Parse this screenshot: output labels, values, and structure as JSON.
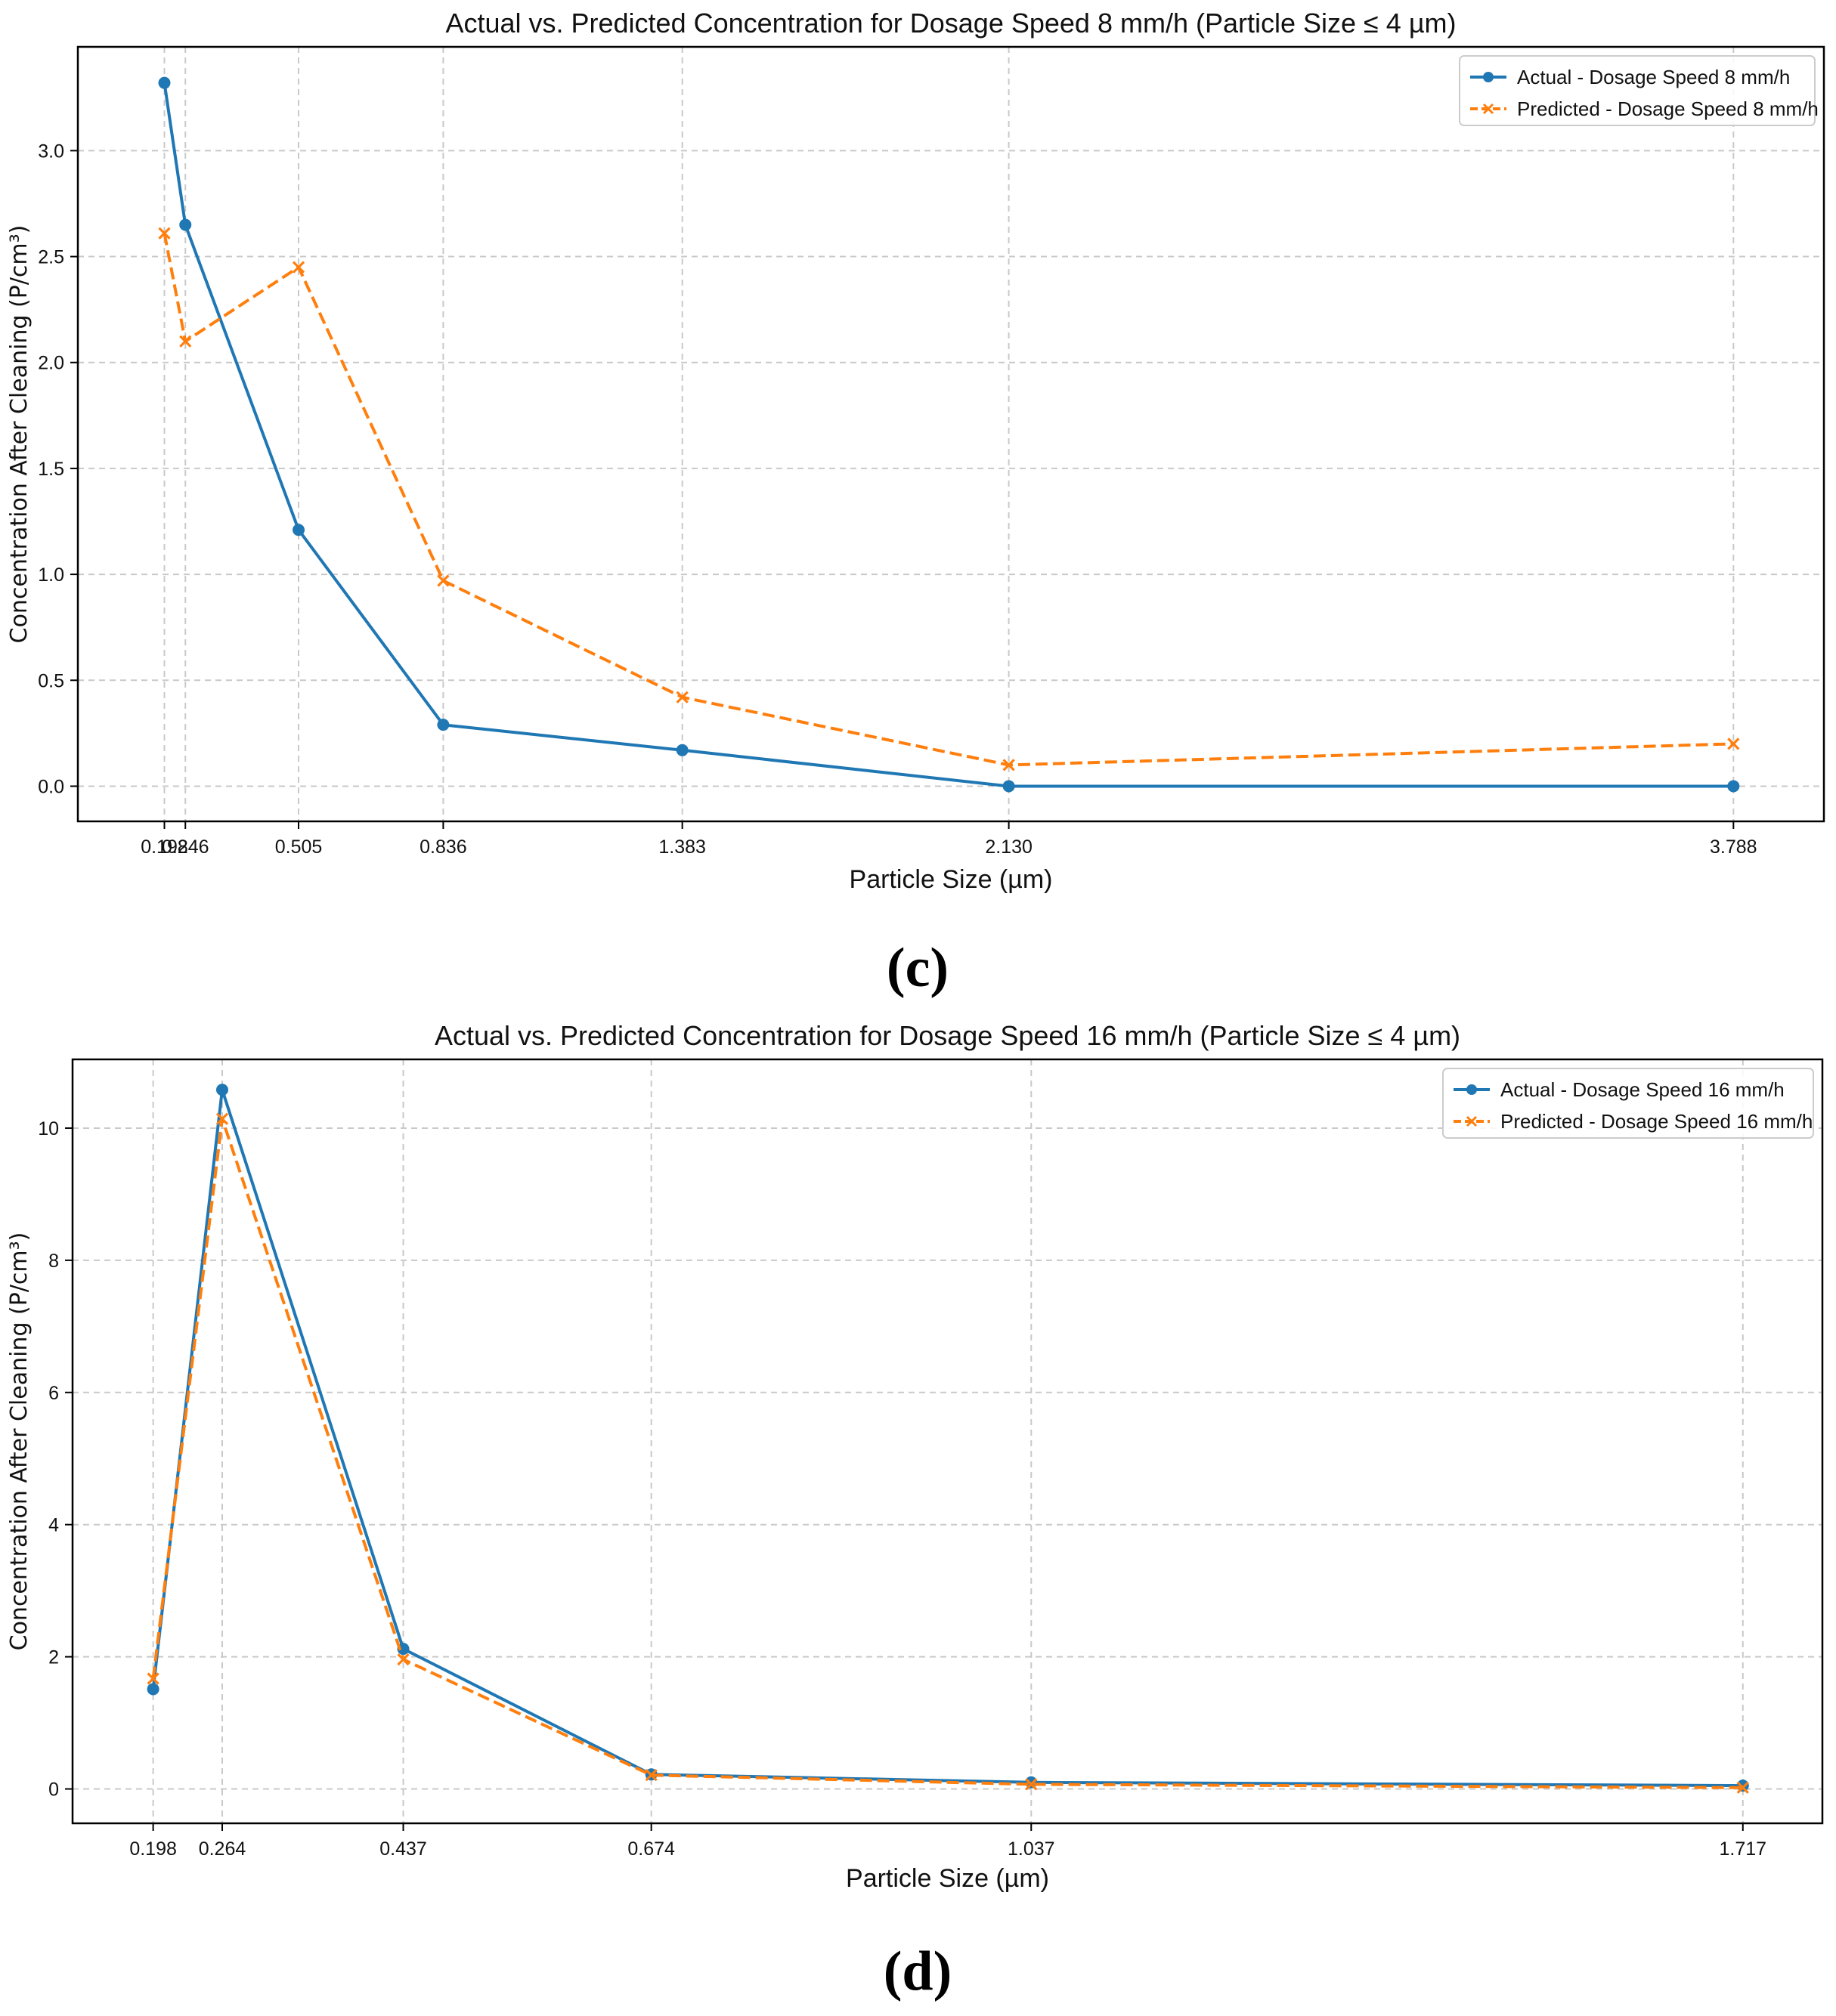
{
  "chart_data": [
    {
      "type": "line",
      "panel_caption": "(c)",
      "title": "Actual vs. Predicted Concentration for Dosage Speed 8 mm/h (Particle Size ≤ 4 µm)",
      "xlabel": "Particle Size (µm)",
      "ylabel": "Concentration After Cleaning (P/cm³)",
      "xlim": [
        0.0,
        3.995
      ],
      "ylim": [
        -0.166,
        3.49
      ],
      "x": [
        0.198,
        0.246,
        0.505,
        0.836,
        1.383,
        2.13,
        3.788
      ],
      "x_tick_labels": [
        "0.198",
        "0.246",
        "0.505",
        "0.836",
        "1.383",
        "2.130",
        "3.788"
      ],
      "y_ticks": [
        0.0,
        0.5,
        1.0,
        1.5,
        2.0,
        2.5,
        3.0
      ],
      "y_tick_labels": [
        "0.0",
        "0.5",
        "1.0",
        "1.5",
        "2.0",
        "2.5",
        "3.0"
      ],
      "grid": true,
      "legend_position": "top-right",
      "series": [
        {
          "name": "Actual - Dosage Speed 8 mm/h",
          "style": "solid",
          "marker": "circle",
          "color": "#1f77b4",
          "values": [
            3.32,
            2.65,
            1.21,
            0.29,
            0.17,
            0.0,
            0.0
          ]
        },
        {
          "name": "Predicted - Dosage Speed 8 mm/h",
          "style": "dashed",
          "marker": "x",
          "color": "#ff7f0e",
          "values": [
            2.61,
            2.1,
            2.45,
            0.97,
            0.42,
            0.1,
            0.2
          ]
        }
      ]
    },
    {
      "type": "line",
      "panel_caption": "(d)",
      "title": "Actual vs. Predicted Concentration for Dosage Speed 16 mm/h (Particle Size ≤ 4 µm)",
      "xlabel": "Particle Size (µm)",
      "ylabel": "Concentration After Cleaning (P/cm³)",
      "xlim": [
        0.121,
        1.793
      ],
      "ylim": [
        -0.52,
        11.04
      ],
      "x": [
        0.198,
        0.264,
        0.437,
        0.674,
        1.037,
        1.717
      ],
      "x_tick_labels": [
        "0.198",
        "0.264",
        "0.437",
        "0.674",
        "1.037",
        "1.717"
      ],
      "y_ticks": [
        0,
        2,
        4,
        6,
        8,
        10
      ],
      "y_tick_labels": [
        "0",
        "2",
        "4",
        "6",
        "8",
        "10"
      ],
      "grid": true,
      "legend_position": "top-right",
      "series": [
        {
          "name": "Actual - Dosage Speed 16 mm/h",
          "style": "solid",
          "marker": "circle",
          "color": "#1f77b4",
          "values": [
            1.51,
            10.58,
            2.12,
            0.22,
            0.1,
            0.05
          ]
        },
        {
          "name": "Predicted - Dosage Speed 16 mm/h",
          "style": "dashed",
          "marker": "x",
          "color": "#ff7f0e",
          "values": [
            1.67,
            10.14,
            1.96,
            0.21,
            0.07,
            0.02
          ]
        }
      ]
    }
  ]
}
